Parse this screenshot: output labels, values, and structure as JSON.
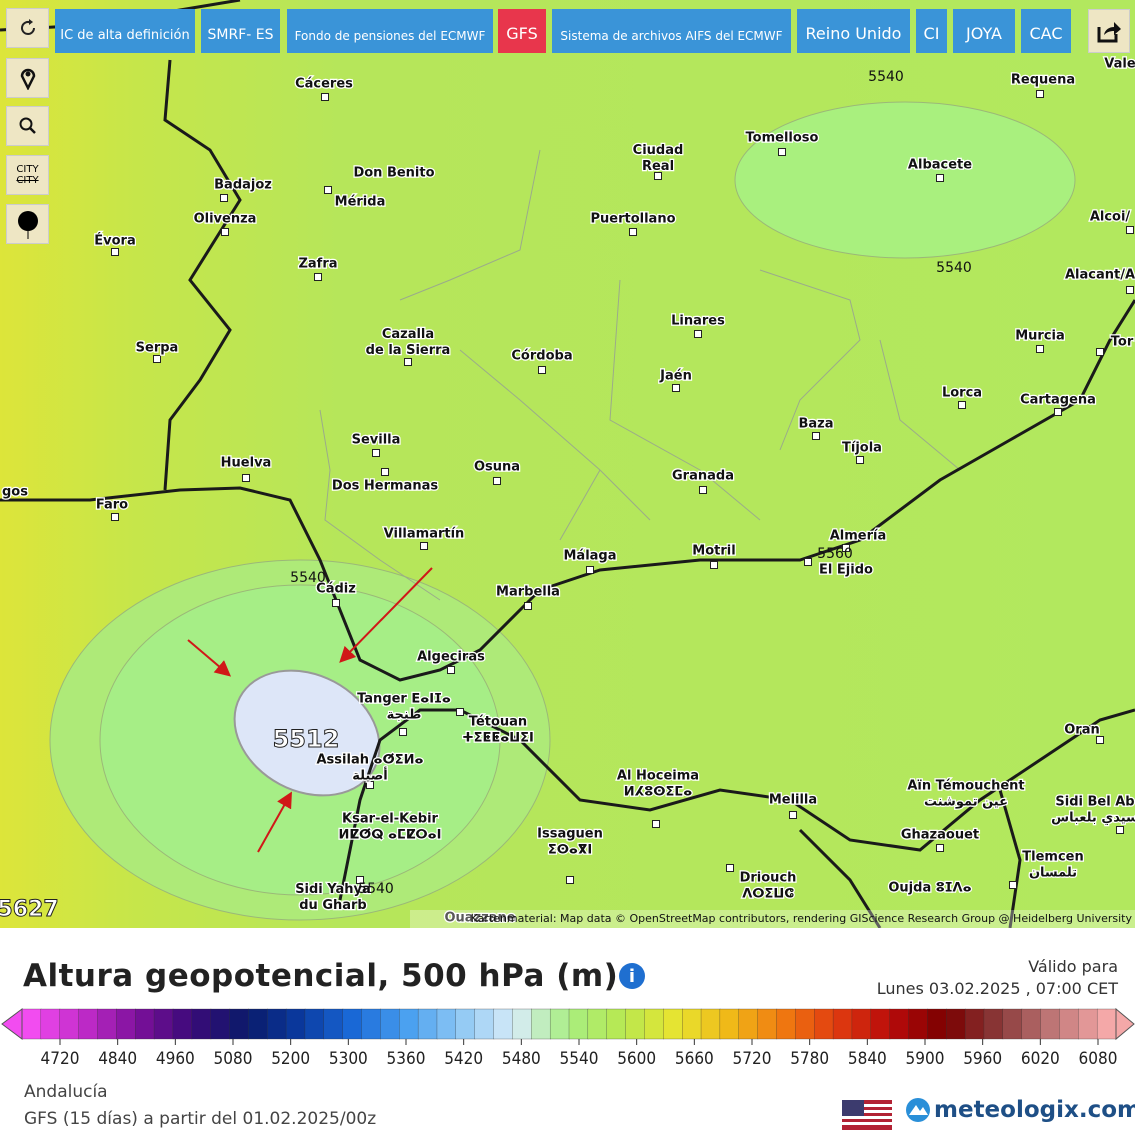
{
  "toolbar": {
    "buttons": [
      "IC de alta definición",
      "SMRF- ES",
      "Fondo de pensiones del ECMWF",
      "GFS",
      "Sistema de archivos AIFS del ECMWF",
      "Reino Unido",
      "CI",
      "JOYA",
      "CAC"
    ],
    "city_toggle": [
      "CITY",
      "CITY"
    ]
  },
  "map": {
    "cities": [
      {
        "name": "Cáceres"
      },
      {
        "name": "Requena"
      },
      {
        "name": "Vale"
      },
      {
        "name": "Tomelloso"
      },
      {
        "name": "Ciudad Real"
      },
      {
        "name": "Albacete"
      },
      {
        "name": "Badajoz"
      },
      {
        "name": "Don Benito"
      },
      {
        "name": "Mérida"
      },
      {
        "name": "Olivenza"
      },
      {
        "name": "Puertollano"
      },
      {
        "name": "Alcoi/"
      },
      {
        "name": "Évora"
      },
      {
        "name": "Zafra"
      },
      {
        "name": "Alacant/A"
      },
      {
        "name": "Linares"
      },
      {
        "name": "Murcia"
      },
      {
        "name": "Tor"
      },
      {
        "name": "Cazalla de la Sierra"
      },
      {
        "name": "Serpa"
      },
      {
        "name": "Córdoba"
      },
      {
        "name": "Jaén"
      },
      {
        "name": "Lorca"
      },
      {
        "name": "Cartagena"
      },
      {
        "name": "Baza"
      },
      {
        "name": "Sevilla"
      },
      {
        "name": "Tíjola"
      },
      {
        "name": "Huelva"
      },
      {
        "name": "Osuna"
      },
      {
        "name": "Granada"
      },
      {
        "name": "Dos Hermanas"
      },
      {
        "name": "gos"
      },
      {
        "name": "Faro"
      },
      {
        "name": "Villamartín"
      },
      {
        "name": "Almería"
      },
      {
        "name": "Málaga"
      },
      {
        "name": "Motril"
      },
      {
        "name": "El Ejido"
      },
      {
        "name": "Cádiz"
      },
      {
        "name": "Marbella"
      },
      {
        "name": "Algeciras"
      },
      {
        "name": "Tanger ⴹⴰⵏⵊⴰ",
        "local": "طنجة"
      },
      {
        "name": "Tétouan",
        "local": "ⵜⵉⵟⵟⴰⵡⵉⵏ"
      },
      {
        "name": "Assilah ⴰⵚⵉⵍⴰ",
        "local": "أصيلة"
      },
      {
        "name": "Oran"
      },
      {
        "name": "Al Hoceima",
        "local": "ⵍⵃⵓⵙⵉⵎⴰ"
      },
      {
        "name": "Aïn Témouchent",
        "local": "عين تموشنت"
      },
      {
        "name": "Melilla"
      },
      {
        "name": "Sidi Bel Ab",
        "local": "سيدي بلعباس"
      },
      {
        "name": "Ksar-el-Kebir",
        "local": "ⵍⵇⵚⵕ ⴰⵎⵇⵔⴰⵏ"
      },
      {
        "name": "Ghazaouet"
      },
      {
        "name": "Issaguen",
        "local": "ⵉⵙⴰⴳⵏ"
      },
      {
        "name": "Tlemcen",
        "local": "تلمسان"
      },
      {
        "name": "Driouch",
        "local": "ⴷⵔⵉⵡⵛ"
      },
      {
        "name": "Oujda ⵓⵊⴷⴰ"
      },
      {
        "name": "Sidi Yahya du Gharb"
      },
      {
        "name": "Ouazzane"
      }
    ],
    "contour_labels": [
      {
        "value": 5540
      },
      {
        "value": 5540
      },
      {
        "value": 5540
      },
      {
        "value": 5560
      },
      {
        "value": 5540
      },
      {
        "value": 5512
      },
      {
        "value": 5627
      }
    ],
    "attribution": "Kartenmaterial: Map data © OpenStreetMap contributors, rendering GIScience Research Group @ Heidelberg University"
  },
  "legend": {
    "title": "Altura geopotencial, 500 hPa (m)",
    "valid_label": "Válido para",
    "valid_time": "Lunes 03.02.2025 , 07:00 CET",
    "ticks": [
      4720,
      4840,
      4960,
      5080,
      5200,
      5300,
      5360,
      5420,
      5480,
      5540,
      5600,
      5660,
      5720,
      5780,
      5840,
      5900,
      5960,
      6020,
      6080
    ]
  },
  "footer": {
    "region": "Andalucía",
    "run": "GFS (15 días) a partir del 01.02.2025/00z",
    "brand": "meteologix.com"
  }
}
